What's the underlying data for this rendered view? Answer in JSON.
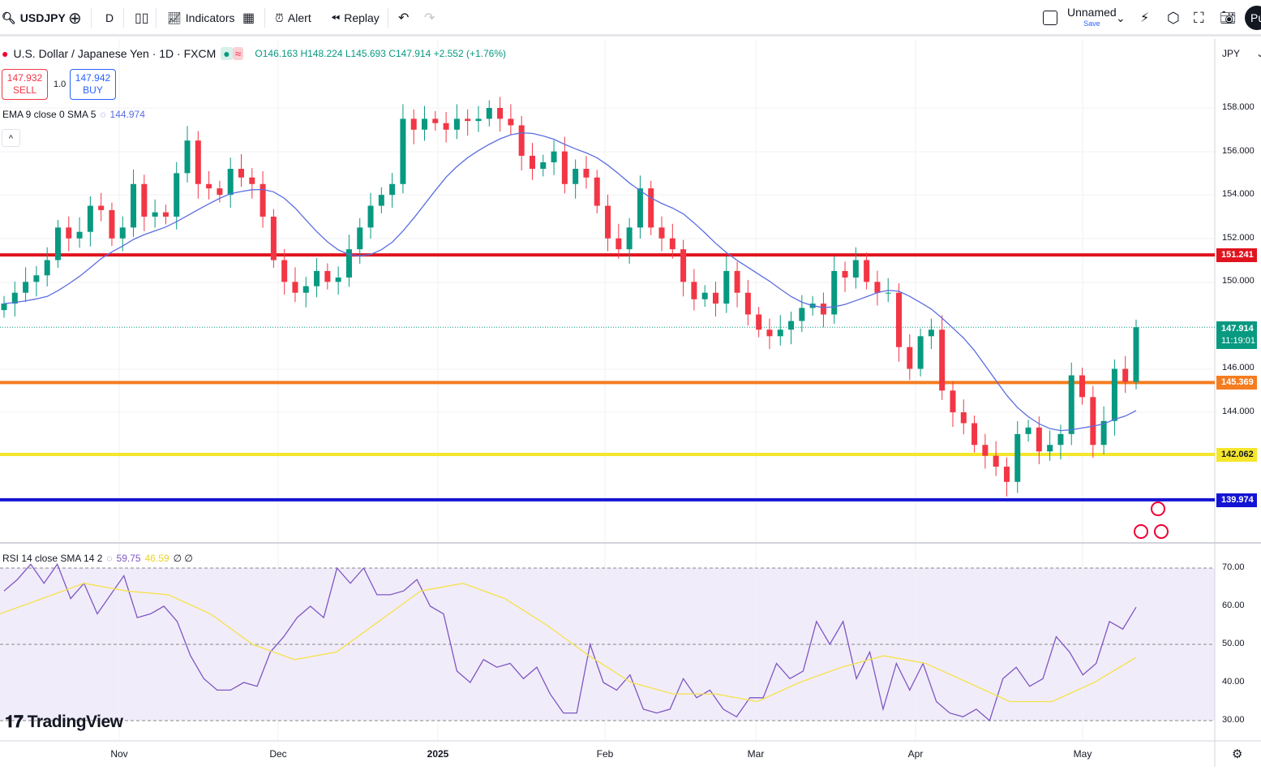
{
  "toolbar": {
    "symbol": "USDJPY",
    "interval": "D",
    "indicators": "Indicators",
    "alert": "Alert",
    "replay": "Replay",
    "layout_name": "Unnamed",
    "save": "Save",
    "publish": "Pu"
  },
  "legend": {
    "title": "U.S. Dollar / Japanese Yen · 1D · FXCM",
    "ohlc": "O146.163 H148.224 L145.693 C147.914 +2.552 (+1.76%)"
  },
  "trade": {
    "sell_price": "147.932",
    "sell": "SELL",
    "qty": "1.0",
    "buy_price": "147.942",
    "buy": "BUY"
  },
  "ema": {
    "label": "EMA 9 close 0 SMA 5",
    "value": "144.974"
  },
  "rsi": {
    "label": "RSI 14 close SMA 14 2",
    "value": "59.75",
    "sma_value": "46.59",
    "extra": "∅ ∅"
  },
  "currency": "JPY",
  "price_ticks": [
    "158.000",
    "156.000",
    "154.000",
    "152.000",
    "150.000",
    "146.000",
    "144.000"
  ],
  "rsi_ticks": [
    "70.00",
    "60.00",
    "50.00",
    "40.00",
    "30.00"
  ],
  "time_ticks": [
    "Nov",
    "Dec",
    "2025",
    "Feb",
    "Mar",
    "Apr",
    "May"
  ],
  "levels": [
    {
      "price": "151.241",
      "color": "#e0141e"
    },
    {
      "price": "145.369",
      "color": "#f57c1f"
    },
    {
      "price": "142.062",
      "color": "#f5e62c"
    },
    {
      "price": "139.974",
      "color": "#1414d4"
    }
  ],
  "last_price": {
    "price": "147.914",
    "countdown": "11:19:01",
    "color": "#089981"
  },
  "brand": "TradingView",
  "colors": {
    "up": "#089981",
    "down": "#f23645",
    "ema": "#5b6ee1",
    "rsi": "#7e57c2",
    "rsi_sma": "#f5e24a"
  },
  "series": {
    "closes": [
      149,
      149.5,
      150,
      150.3,
      151,
      152.5,
      152,
      152.3,
      153.5,
      153.3,
      152,
      152.5,
      154.5,
      153,
      153.2,
      153,
      155,
      156.5,
      154.5,
      154.3,
      154,
      155.2,
      154.8,
      154.5,
      153,
      151,
      150,
      149.5,
      149.8,
      150.5,
      150,
      150.2,
      151.5,
      152.5,
      153.5,
      154,
      154.5,
      157.5,
      157,
      157.5,
      157.3,
      157,
      157.5,
      157.4,
      157.5,
      158,
      157.5,
      157.2,
      155.8,
      155.2,
      155.5,
      156,
      154.5,
      155.2,
      154.8,
      153.5,
      152,
      151.5,
      152.5,
      154.3,
      152.5,
      152,
      151.5,
      150,
      149.2,
      149.5,
      149,
      150.5,
      149.5,
      148.5,
      147.8,
      147.5,
      147.8,
      148.2,
      148.8,
      149,
      148.5,
      150.5,
      150.2,
      151,
      150,
      149.5,
      149.5,
      147,
      146,
      147.5,
      147.8,
      145,
      144,
      143.5,
      142.5,
      142,
      141.5,
      140.8,
      143,
      143.3,
      142.2,
      142.5,
      143,
      145.7,
      144.7,
      142.5,
      143.6,
      146,
      145.4,
      147.914
    ],
    "rsi": [
      64,
      67,
      71,
      66,
      71,
      62,
      66,
      58,
      63,
      68,
      57,
      58,
      60,
      56,
      47,
      41,
      38,
      38,
      40,
      39,
      48,
      52,
      57,
      60,
      57,
      70,
      66,
      70,
      63,
      63,
      64,
      67,
      60,
      58,
      43,
      40,
      46,
      44,
      45,
      41,
      44,
      37,
      32,
      32,
      50,
      40,
      38,
      42,
      33,
      32,
      33,
      41,
      36,
      38,
      33,
      31,
      36,
      36,
      45,
      41,
      43,
      56,
      50,
      56,
      41,
      48,
      33,
      45,
      38,
      45,
      35,
      32,
      31,
      33,
      30,
      41,
      44,
      39,
      41,
      52,
      48,
      42,
      45,
      56,
      54,
      59.75
    ],
    "rsi_sma": [
      58,
      62,
      66,
      64,
      63,
      58,
      50,
      46,
      48,
      56,
      64,
      66,
      62,
      55,
      47,
      40,
      37,
      37,
      35,
      40,
      44,
      47,
      45,
      40,
      35,
      35,
      40,
      46.59
    ]
  }
}
